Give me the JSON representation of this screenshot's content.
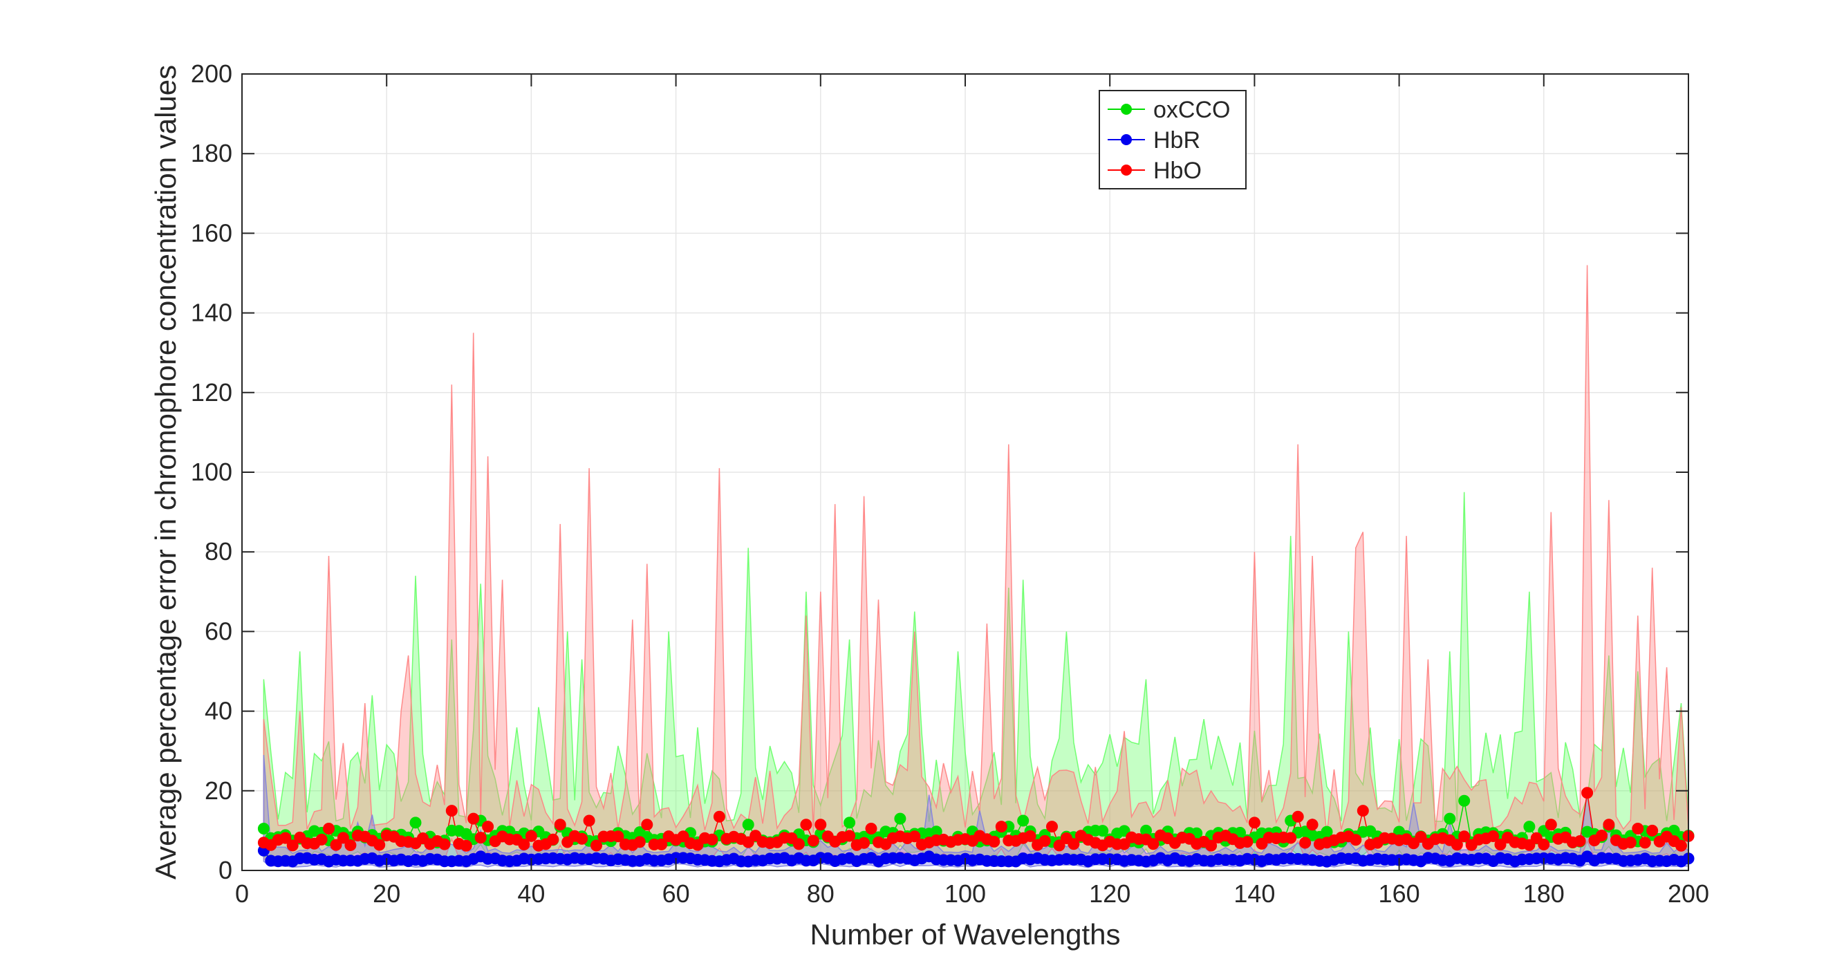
{
  "chart_data": {
    "type": "line",
    "title": "",
    "xlabel": "Number of Wavelengths",
    "ylabel": "Average percentage error in chromophore concentration values",
    "xlim": [
      0,
      200
    ],
    "ylim": [
      0,
      200
    ],
    "xticks": [
      0,
      20,
      40,
      60,
      80,
      100,
      120,
      140,
      160,
      180,
      200
    ],
    "yticks": [
      0,
      20,
      40,
      60,
      80,
      100,
      120,
      140,
      160,
      180,
      200
    ],
    "grid": true,
    "legend_position": "top-center",
    "x_start": 3,
    "x_end": 200,
    "series": [
      {
        "name": "oxCCO",
        "color": "#00dd00",
        "band_color": "#66ff66",
        "mean_base": 8.5,
        "mean_points": [
          [
            3,
            10.5
          ],
          [
            24,
            12
          ],
          [
            29,
            10
          ],
          [
            33,
            12.5
          ],
          [
            44,
            11
          ],
          [
            70,
            11.5
          ],
          [
            84,
            12
          ],
          [
            91,
            13
          ],
          [
            106,
            11
          ],
          [
            108,
            12.5
          ],
          [
            118,
            10
          ],
          [
            125,
            10
          ],
          [
            145,
            12.5
          ],
          [
            167,
            13
          ],
          [
            169,
            17.5
          ],
          [
            178,
            11
          ],
          [
            189,
            11
          ],
          [
            198,
            10
          ]
        ],
        "upper_base": 24,
        "upper_points": [
          [
            3,
            48
          ],
          [
            8,
            55
          ],
          [
            18,
            44
          ],
          [
            24,
            74
          ],
          [
            29,
            58
          ],
          [
            33,
            72
          ],
          [
            41,
            41
          ],
          [
            45,
            60
          ],
          [
            47,
            53
          ],
          [
            59,
            60
          ],
          [
            70,
            81
          ],
          [
            78,
            70
          ],
          [
            84,
            58
          ],
          [
            93,
            65
          ],
          [
            99,
            55
          ],
          [
            106,
            71
          ],
          [
            108,
            73
          ],
          [
            114,
            60
          ],
          [
            125,
            48
          ],
          [
            133,
            38
          ],
          [
            145,
            84
          ],
          [
            153,
            60
          ],
          [
            167,
            55
          ],
          [
            169,
            95
          ],
          [
            178,
            70
          ],
          [
            189,
            54
          ],
          [
            193,
            50
          ],
          [
            199,
            42
          ]
        ]
      },
      {
        "name": "HbR",
        "color": "#0000ee",
        "band_color": "#7f7fe0",
        "mean_base": 2.7,
        "mean_points": [
          [
            3,
            5
          ],
          [
            33,
            3.5
          ],
          [
            95,
            3.5
          ],
          [
            145,
            3
          ],
          [
            186,
            3.5
          ],
          [
            200,
            3
          ]
        ],
        "upper_base": 5,
        "upper_points": [
          [
            3,
            29
          ],
          [
            16,
            12
          ],
          [
            18,
            14
          ],
          [
            33,
            10
          ],
          [
            95,
            19
          ],
          [
            102,
            15
          ],
          [
            148,
            13
          ],
          [
            162,
            17
          ],
          [
            167,
            12
          ],
          [
            186,
            20
          ],
          [
            189,
            10
          ]
        ]
      },
      {
        "name": "HbO",
        "color": "#ff0000",
        "band_color": "#ff8080",
        "mean_base": 7.5,
        "mean_points": [
          [
            3,
            7
          ],
          [
            12,
            10.5
          ],
          [
            29,
            15
          ],
          [
            32,
            13
          ],
          [
            34,
            11
          ],
          [
            44,
            11.5
          ],
          [
            48,
            12.5
          ],
          [
            56,
            11.5
          ],
          [
            66,
            13.5
          ],
          [
            78,
            11.5
          ],
          [
            80,
            11.5
          ],
          [
            87,
            10.5
          ],
          [
            105,
            11
          ],
          [
            112,
            11
          ],
          [
            140,
            12
          ],
          [
            146,
            13.5
          ],
          [
            148,
            11.5
          ],
          [
            155,
            15
          ],
          [
            181,
            11.5
          ],
          [
            186,
            19.5
          ],
          [
            189,
            11.5
          ],
          [
            193,
            10.5
          ],
          [
            195,
            10
          ]
        ],
        "upper_base": 18,
        "upper_points": [
          [
            3,
            38
          ],
          [
            8,
            40
          ],
          [
            12,
            79
          ],
          [
            14,
            32
          ],
          [
            17,
            42
          ],
          [
            22,
            40
          ],
          [
            23,
            54
          ],
          [
            29,
            122
          ],
          [
            32,
            135
          ],
          [
            34,
            104
          ],
          [
            36,
            73
          ],
          [
            44,
            87
          ],
          [
            48,
            101
          ],
          [
            54,
            63
          ],
          [
            56,
            77
          ],
          [
            66,
            101
          ],
          [
            78,
            64
          ],
          [
            80,
            70
          ],
          [
            82,
            92
          ],
          [
            86,
            94
          ],
          [
            88,
            68
          ],
          [
            93,
            60
          ],
          [
            103,
            62
          ],
          [
            106,
            107
          ],
          [
            122,
            35
          ],
          [
            140,
            80
          ],
          [
            146,
            107
          ],
          [
            148,
            79
          ],
          [
            154,
            81
          ],
          [
            155,
            85
          ],
          [
            161,
            84
          ],
          [
            164,
            53
          ],
          [
            181,
            90
          ],
          [
            186,
            152
          ],
          [
            189,
            93
          ],
          [
            193,
            64
          ],
          [
            195,
            76
          ],
          [
            197,
            51
          ],
          [
            199,
            41
          ]
        ]
      }
    ]
  }
}
